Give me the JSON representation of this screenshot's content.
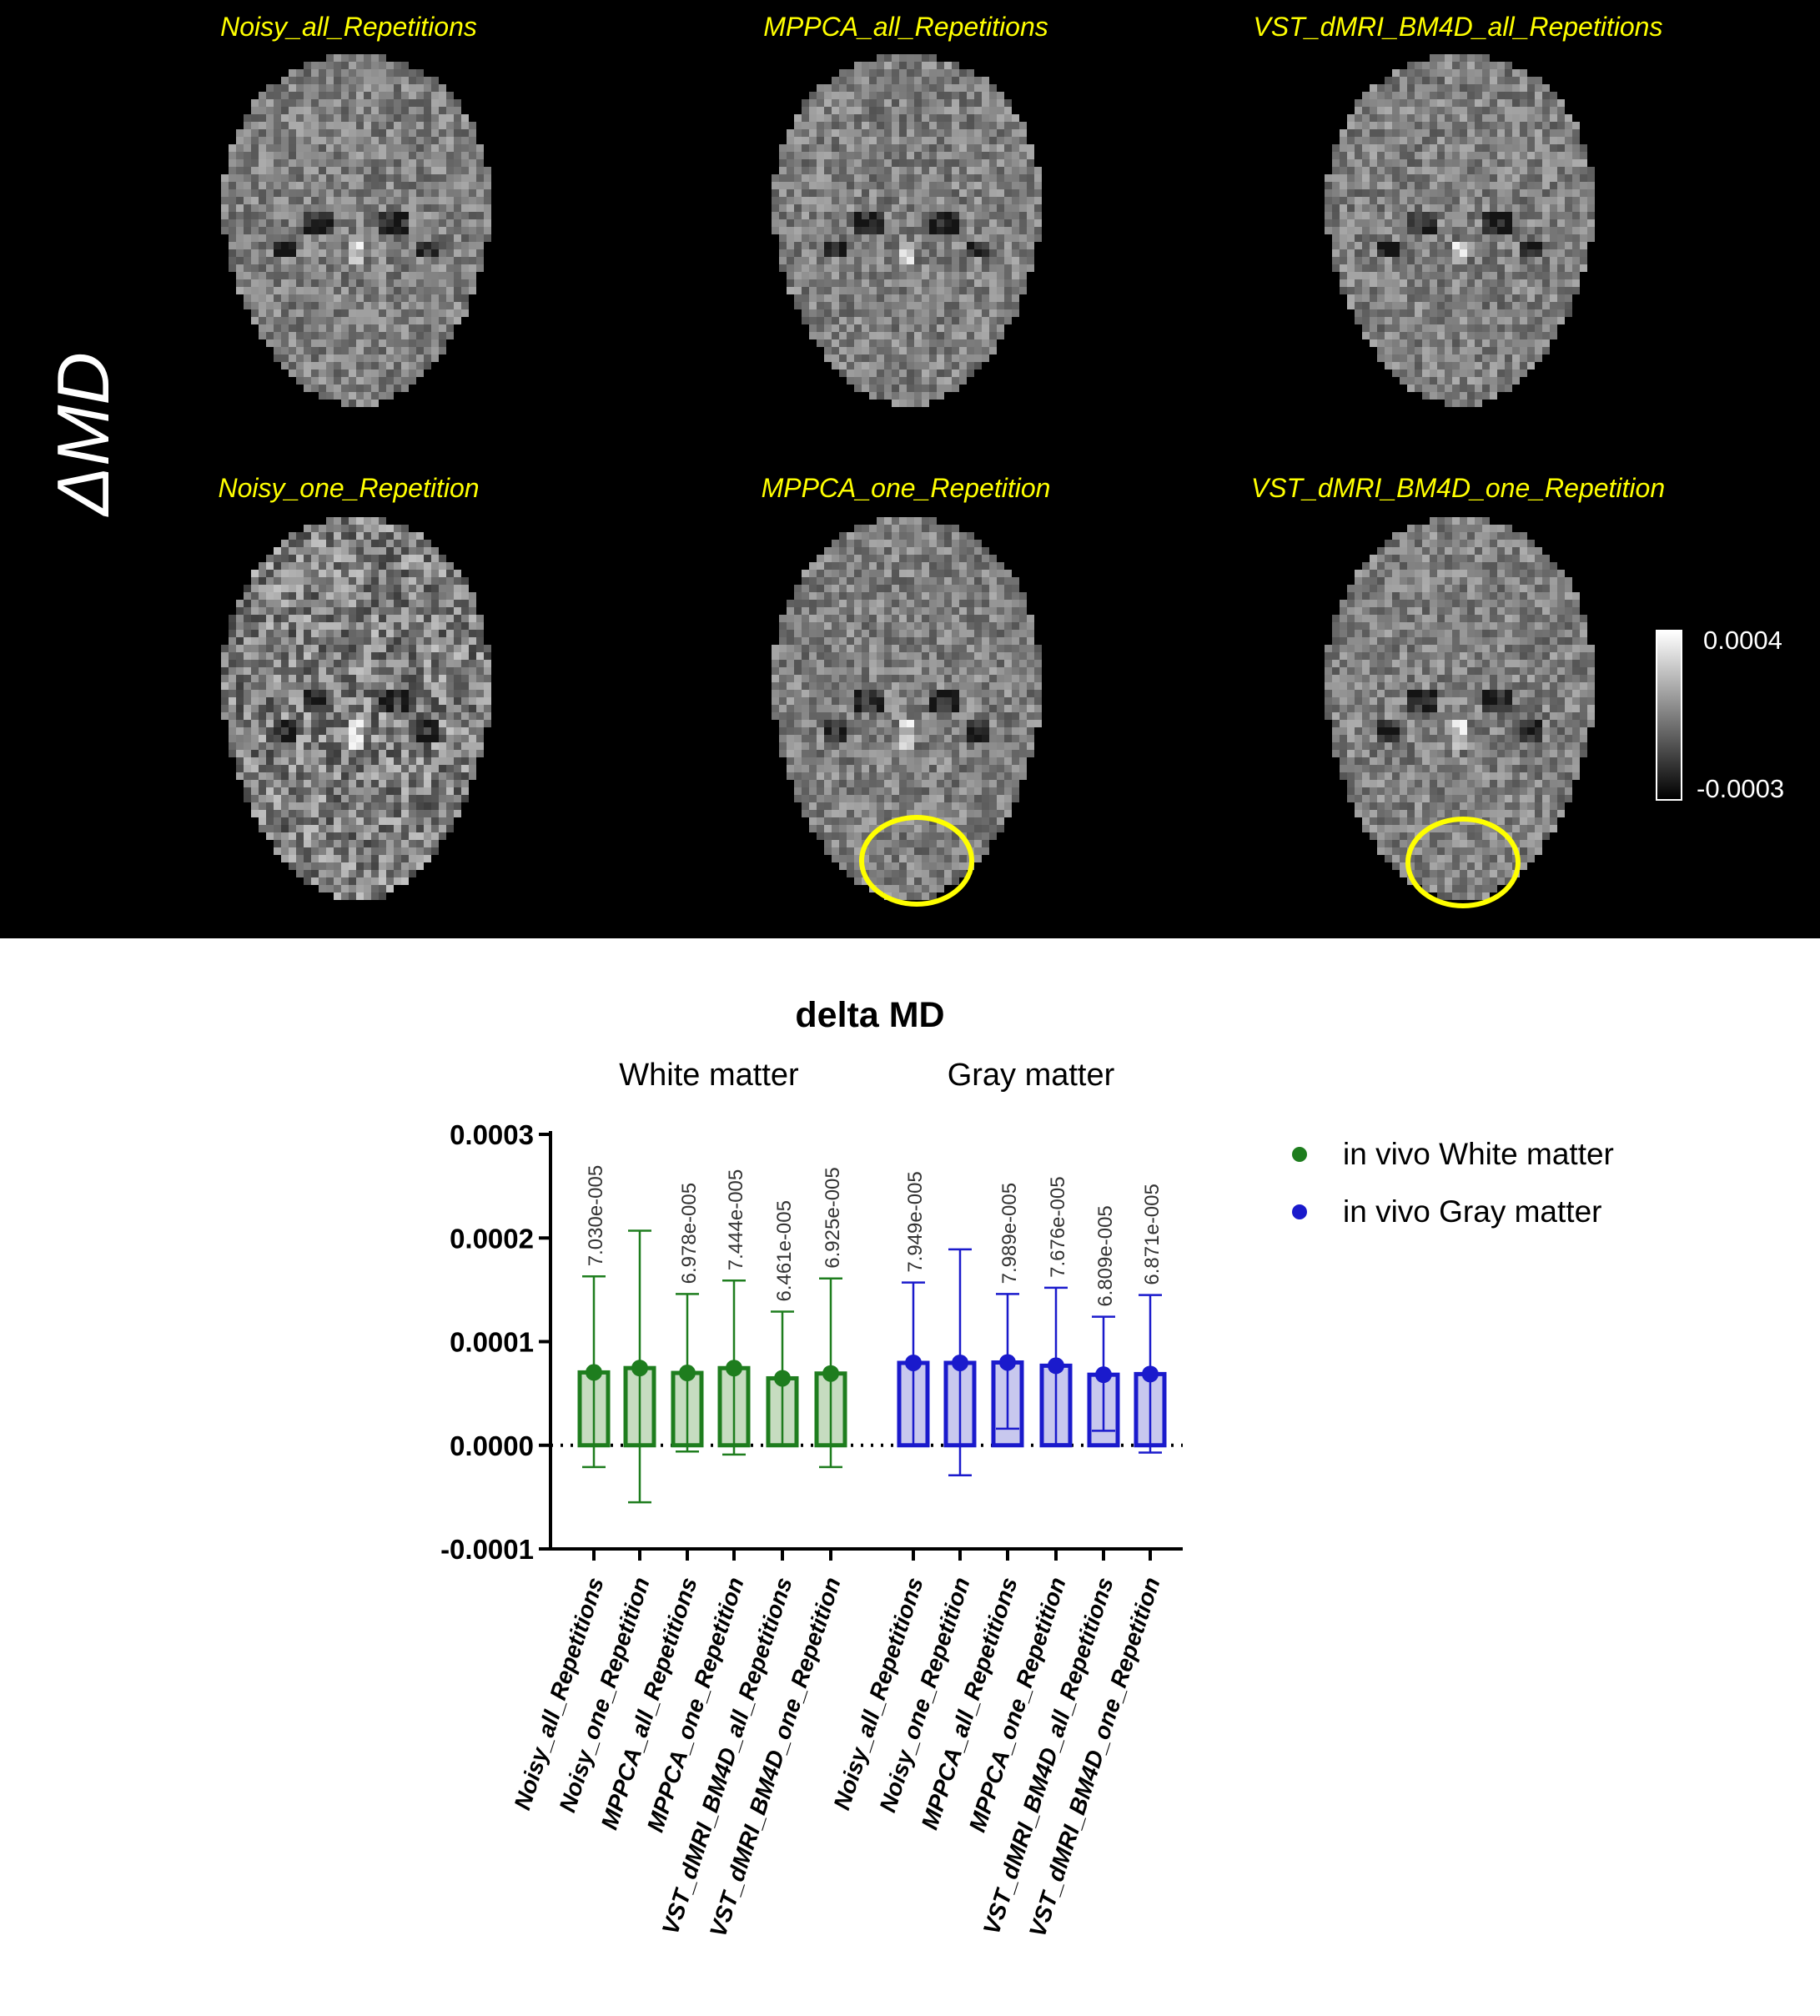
{
  "image_panel": {
    "quantity_label": "ΔMD",
    "titles": [
      "Noisy_all_Repetitions",
      "MPPCA_all_Repetitions",
      "VST_dMRI_BM4D_all_Repetitions",
      "Noisy_one_Repetition",
      "MPPCA_one_Repetition",
      "VST_dMRI_BM4D_one_Repetition"
    ],
    "colorbar": {
      "max_label": "0.0004",
      "min_label": "-0.0003"
    },
    "highlight_color": "#ffff00"
  },
  "chart_data": {
    "type": "bar",
    "title": "delta MD",
    "group_labels": [
      "White matter",
      "Gray matter"
    ],
    "categories": [
      "Noisy_all_Repetitions",
      "Noisy_one_Repetition",
      "MPPCA_all_Repetitions",
      "MPPCA_one_Repetition",
      "VST_dMRI_BM4D_all_Repetitions",
      "VST_dMRI_BM4D_one_Repetition"
    ],
    "ylim": [
      -0.0001,
      0.0003
    ],
    "yticks": [
      "0.0003",
      "0.0002",
      "0.0001",
      "0.0000",
      "-0.0001"
    ],
    "reference_line": 0,
    "series": [
      {
        "name": "in vivo White matter",
        "color": "#1e7d1e",
        "values": [
          7.03e-05,
          7.45e-05,
          6.978e-05,
          7.444e-05,
          6.461e-05,
          6.925e-05
        ],
        "error_upper": [
          0.000163,
          0.000207,
          0.000146,
          0.000159,
          0.000129,
          0.000161
        ],
        "error_lower": [
          -2.1e-05,
          -5.5e-05,
          -6e-06,
          -9e-06,
          5e-07,
          -2.1e-05
        ],
        "value_labels": [
          "7.030e-005",
          "",
          "6.978e-005",
          "7.444e-005",
          "6.461e-005",
          "6.925e-005"
        ]
      },
      {
        "name": "in vivo Gray matter",
        "color": "#1a1acc",
        "values": [
          7.949e-05,
          7.95e-05,
          7.989e-05,
          7.676e-05,
          6.809e-05,
          6.871e-05
        ],
        "error_upper": [
          0.000157,
          0.000189,
          0.000146,
          0.000152,
          0.000124,
          0.000145
        ],
        "error_lower": [
          5e-07,
          -2.9e-05,
          1.6e-05,
          1e-06,
          1.4e-05,
          -7e-06
        ],
        "value_labels": [
          "7.949e-005",
          "",
          "7.989e-005",
          "7.676e-005",
          "6.809e-005",
          "6.871e-005"
        ]
      }
    ],
    "legend_position": "right"
  }
}
